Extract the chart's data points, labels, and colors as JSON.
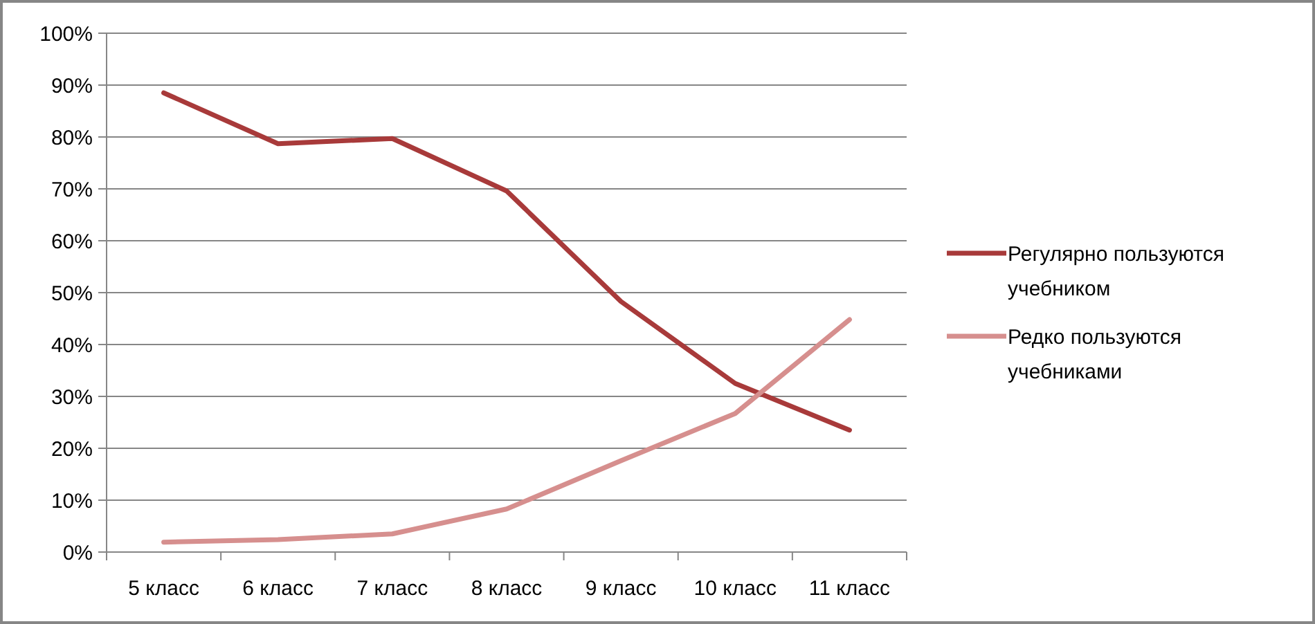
{
  "chart_data": {
    "type": "line",
    "categories": [
      "5 класс",
      "6 класс",
      "7 класс",
      "8 класс",
      "9 класс",
      "10 класс",
      "11 класс"
    ],
    "series": [
      {
        "name": "Регулярно пользуются учебником",
        "color": "#a83a3a",
        "values": [
          88.5,
          78.7,
          79.7,
          69.6,
          48.3,
          32.5,
          23.5
        ]
      },
      {
        "name": "Редко пользуются учебниками",
        "color": "#d68f8e",
        "values": [
          1.9,
          2.4,
          3.5,
          8.3,
          17.6,
          26.7,
          44.8
        ]
      }
    ],
    "ylim": [
      0,
      100
    ],
    "yticks": [
      {
        "value": 0,
        "label": "0%"
      },
      {
        "value": 10,
        "label": "10%"
      },
      {
        "value": 20,
        "label": "20%"
      },
      {
        "value": 30,
        "label": "30%"
      },
      {
        "value": 40,
        "label": "40%"
      },
      {
        "value": 50,
        "label": "50%"
      },
      {
        "value": 60,
        "label": "60%"
      },
      {
        "value": 70,
        "label": "70%"
      },
      {
        "value": 80,
        "label": "80%"
      },
      {
        "value": 90,
        "label": "90%"
      },
      {
        "value": 100,
        "label": "100%"
      }
    ],
    "grid": "y",
    "legend": "right",
    "marker": "none",
    "line_style": "solid"
  }
}
